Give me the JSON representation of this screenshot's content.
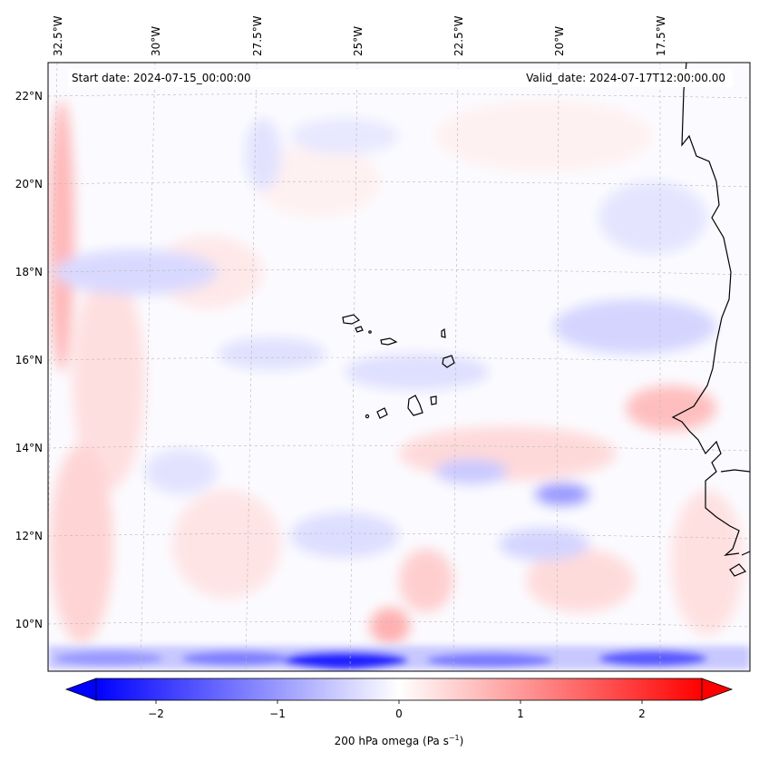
{
  "header": {
    "start_date": "Start date: 2024-07-15_00:00:00",
    "valid_date": "Valid_date: 2024-07-17T12:00:00.00"
  },
  "map": {
    "lat_labels": [
      "22°N",
      "20°N",
      "18°N",
      "16°N",
      "14°N",
      "12°N",
      "10°N"
    ],
    "lon_labels": [
      "32.5°W",
      "30°W",
      "27.5°W",
      "25°W",
      "22.5°W",
      "20°W",
      "17.5°W"
    ],
    "colors": {
      "negative": "#0000ff",
      "positive": "#ff0000",
      "neutral": "#ffffff"
    }
  },
  "colorbar": {
    "label": "200 hPa omega (Pa s",
    "label_sup": "−1",
    "label_tail": ")",
    "ticks": [
      "−2",
      "−1",
      "0",
      "1",
      "2"
    ],
    "range": [
      -2.6,
      2.6
    ]
  }
}
